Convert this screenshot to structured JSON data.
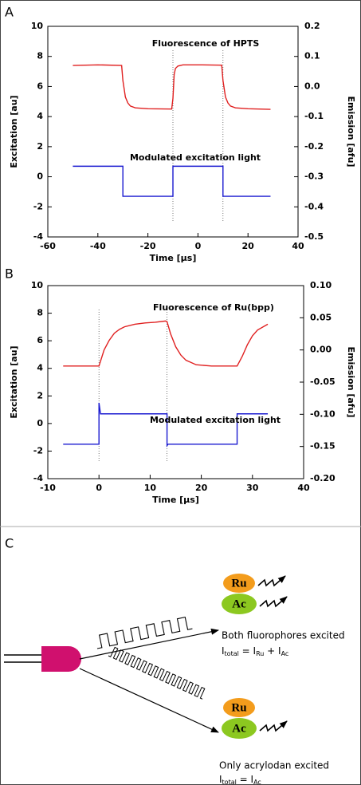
{
  "chart_data": [
    {
      "type": "line",
      "label": "A",
      "xlabel": "Time [µs]",
      "ylabel": "Excitation [au]",
      "y2label": "Emission [afu]",
      "xlim": [
        -60,
        40
      ],
      "xticks": [
        -60,
        -40,
        -20,
        0,
        20,
        40
      ],
      "ylim": [
        -4,
        10
      ],
      "yticks": [
        -4,
        -2,
        0,
        2,
        4,
        6,
        8,
        10
      ],
      "y2lim": [
        -0.5,
        0.2
      ],
      "y2ticks": [
        -0.5,
        -0.4,
        -0.3,
        -0.2,
        -0.1,
        {
          "value": 0,
          "label": "0.0"
        },
        0.1,
        0.2
      ],
      "vlines": [
        -10,
        10
      ],
      "series": [
        {
          "name": "Fluorescence of HPTS",
          "color": "#e02020",
          "axis": "y2",
          "x": [
            -50,
            -40,
            -30.5,
            -30,
            -29,
            -28,
            -27,
            -25,
            -20,
            -10.5,
            -10,
            -9.5,
            -9,
            -8,
            -6,
            0,
            9.5,
            10,
            11,
            12,
            13,
            15,
            20,
            29
          ],
          "values": [
            0.07,
            0.072,
            0.07,
            0.02,
            -0.035,
            -0.055,
            -0.065,
            -0.071,
            -0.074,
            -0.075,
            -0.04,
            0.04,
            0.06,
            0.068,
            0.072,
            0.072,
            0.071,
            0.02,
            -0.035,
            -0.055,
            -0.065,
            -0.071,
            -0.074,
            -0.076
          ]
        },
        {
          "name": "Modulated excitation light",
          "color": "#1a1ad0",
          "axis": "y",
          "x": [
            -50,
            -30,
            -30,
            -10,
            -10,
            10,
            10,
            29
          ],
          "values": [
            0.7,
            0.7,
            -1.3,
            -1.3,
            0.7,
            0.7,
            -1.3,
            -1.3
          ]
        }
      ]
    },
    {
      "type": "line",
      "label": "B",
      "xlabel": "Time [µs]",
      "ylabel": "Excitation [au]",
      "y2label": "Emission [afu]",
      "xlim": [
        -10,
        40
      ],
      "xticks": [
        -10,
        0,
        10,
        20,
        30,
        40
      ],
      "ylim": [
        -4,
        10
      ],
      "yticks": [
        -4,
        -2,
        0,
        2,
        4,
        6,
        8,
        10
      ],
      "y2lim": [
        -0.2,
        0.1
      ],
      "y2ticks": [
        {
          "value": -0.2,
          "label": "-0.20"
        },
        -0.15,
        {
          "value": -0.1,
          "label": "-0.10"
        },
        -0.05,
        {
          "value": 0,
          "label": "0.00"
        },
        0.05,
        {
          "value": 0.1,
          "label": "0.10"
        }
      ],
      "vlines": [
        0,
        13.3
      ],
      "series": [
        {
          "name": "Fluorescence of Ru(bpp)",
          "color": "#e02020",
          "axis": "y2",
          "x": [
            -7,
            0,
            1,
            2,
            3,
            4,
            5,
            7,
            9,
            11,
            13,
            13.3,
            14,
            15,
            16,
            17,
            19,
            22,
            27,
            28,
            29,
            30,
            31,
            33
          ],
          "values": [
            -0.025,
            -0.025,
            0.0,
            0.015,
            0.026,
            0.032,
            0.036,
            0.04,
            0.042,
            0.043,
            0.045,
            0.044,
            0.025,
            0.005,
            -0.008,
            -0.016,
            -0.023,
            -0.025,
            -0.025,
            -0.01,
            0.008,
            0.022,
            0.031,
            0.04
          ]
        },
        {
          "name": "Modulated excitation light",
          "color": "#1a1ad0",
          "axis": "y",
          "x": [
            -7,
            0,
            0,
            0.3,
            13.3,
            13.3,
            13.5,
            27,
            27,
            33
          ],
          "values": [
            -1.5,
            -1.5,
            1.5,
            0.7,
            0.7,
            -1.6,
            -1.5,
            -1.5,
            0.7,
            0.7
          ]
        }
      ]
    }
  ],
  "diagram": {
    "label": "C",
    "top": {
      "molecules": [
        "Ru",
        "Ac"
      ],
      "caption": "Both fluorophores excited",
      "formula": [
        "I",
        "total",
        " = I",
        "Ru",
        " + I",
        "Ac"
      ]
    },
    "bottom": {
      "molecules": [
        "Ru",
        "Ac"
      ],
      "caption": "Only acrylodan excited",
      "formula": [
        "I",
        "total",
        " = I",
        "Ac"
      ]
    }
  }
}
